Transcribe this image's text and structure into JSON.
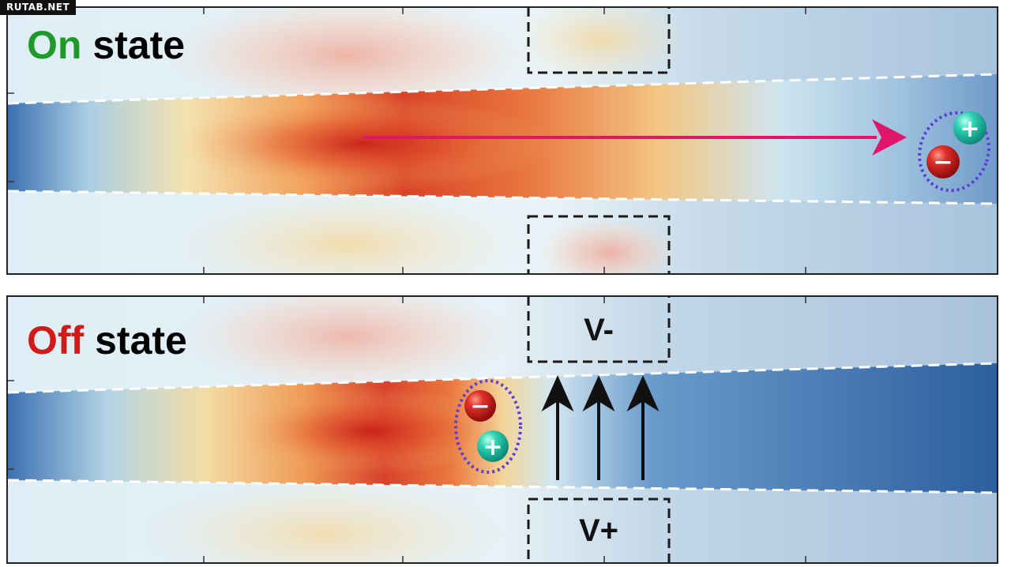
{
  "watermark": "RUTAB.NET",
  "panels": [
    {
      "state_word": "On",
      "state_suffix": "state",
      "state_color": "#1f9a2a"
    },
    {
      "state_word": "Off",
      "state_suffix": "state",
      "state_color": "#d11a1a",
      "gate_top_label": "V-",
      "gate_bottom_label": "V+"
    }
  ],
  "particles": {
    "positive_symbol": "+",
    "negative_symbol": "−",
    "positive_color": "#23c4a4",
    "negative_color": "#d42424"
  },
  "colors": {
    "waveguide_low": "#2b62a8",
    "field_high": "#d82a1a",
    "arrow_on": "#e0166a",
    "arrow_off": "#111111",
    "exciton_ring": "#5b3fd6"
  }
}
